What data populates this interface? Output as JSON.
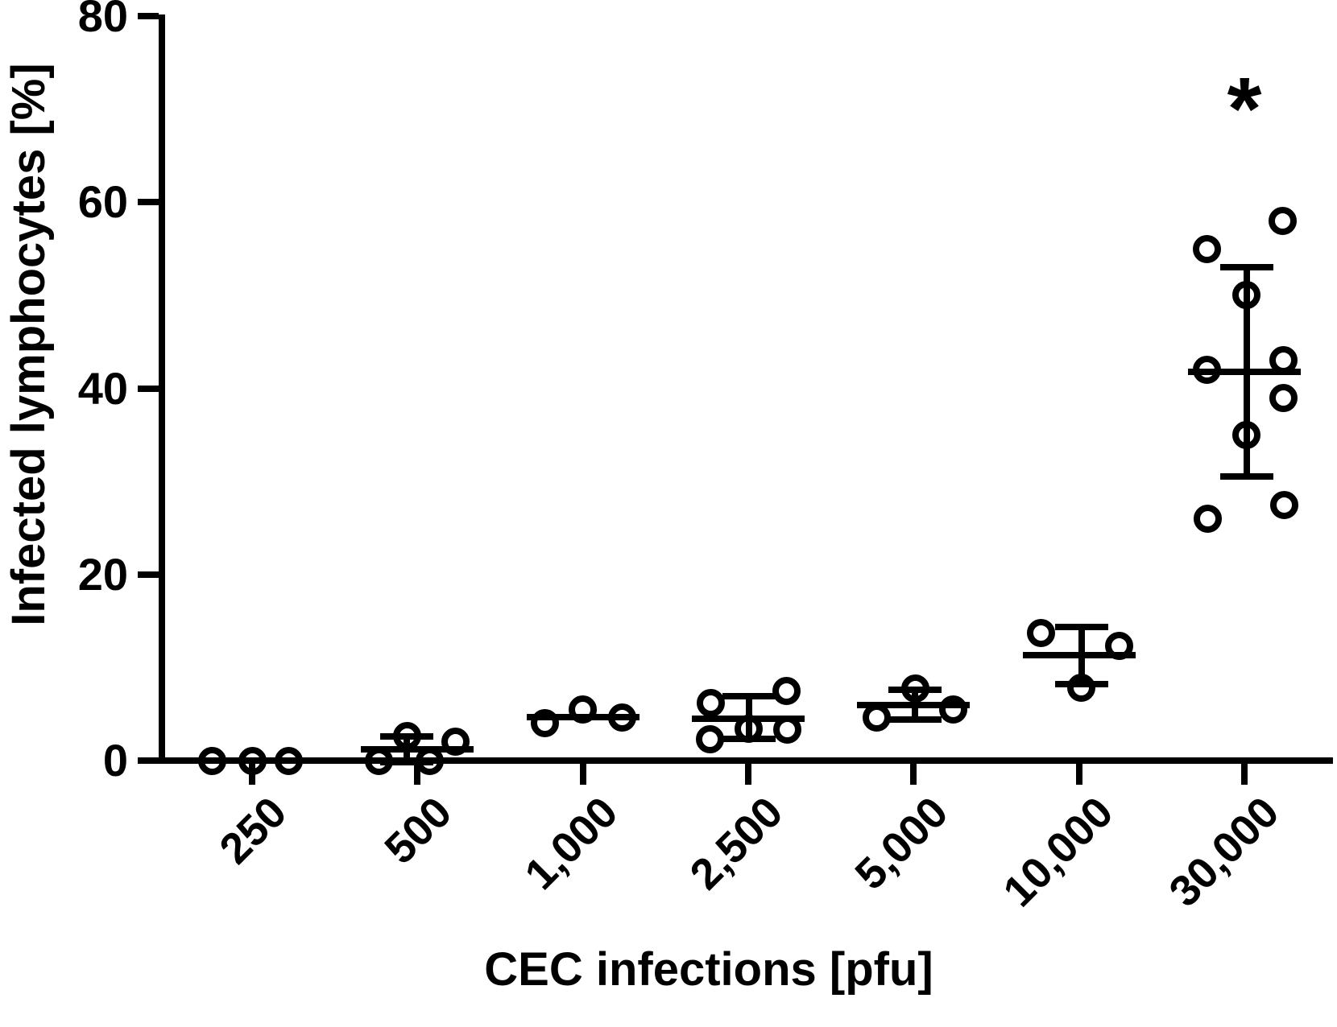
{
  "figure": {
    "background": "#ffffff",
    "ink": "#000000"
  },
  "chart_data": {
    "type": "scatter",
    "title": "",
    "xlabel": "CEC infections [pfu]",
    "ylabel": "Infected lymphocytes [%]",
    "ylim": [
      0,
      80
    ],
    "yticks": [
      0,
      20,
      40,
      60,
      80
    ],
    "categories": [
      "250",
      "500",
      "1,000",
      "2,500",
      "5,000",
      "10,000",
      "30,000"
    ],
    "grid": false,
    "legend": "none",
    "marker": "open-circle",
    "error_style": "mean-plus-minus-sd",
    "groups": [
      {
        "category": "250",
        "values": [
          0,
          0,
          0
        ],
        "mean": 0,
        "whisker_low": null,
        "whisker_high": null,
        "err_dx": 0,
        "points": [
          {
            "dx": -50,
            "v": 0
          },
          {
            "dx": 0,
            "v": 0
          },
          {
            "dx": 45,
            "v": 0
          }
        ]
      },
      {
        "category": "500",
        "values": [
          0,
          2.6,
          0,
          2
        ],
        "mean": 1.2,
        "whisker_low": -0.2,
        "whisker_high": 2.6,
        "err_dx": -13,
        "points": [
          {
            "dx": -48,
            "v": 0
          },
          {
            "dx": -13,
            "v": 2.6
          },
          {
            "dx": 15,
            "v": 0
          },
          {
            "dx": 47,
            "v": 2
          }
        ]
      },
      {
        "category": "1,000",
        "values": [
          4,
          5.5,
          4.6
        ],
        "mean": 4.7,
        "whisker_low": null,
        "whisker_high": null,
        "err_dx": 0,
        "points": [
          {
            "dx": -47,
            "v": 4
          },
          {
            "dx": 0,
            "v": 5.5
          },
          {
            "dx": 49,
            "v": 4.6
          }
        ]
      },
      {
        "category": "2,500",
        "values": [
          6.2,
          2.3,
          3.4,
          7.5,
          3.3
        ],
        "mean": 4.5,
        "whisker_low": 2.3,
        "whisker_high": 6.9,
        "err_dx": 1,
        "points": [
          {
            "dx": -46,
            "v": 6.2
          },
          {
            "dx": -47,
            "v": 2.3
          },
          {
            "dx": 1,
            "v": 3.4
          },
          {
            "dx": 48,
            "v": 7.5
          },
          {
            "dx": 49,
            "v": 3.3
          }
        ]
      },
      {
        "category": "5,000",
        "values": [
          4.6,
          7.7,
          5.5
        ],
        "mean": 6,
        "whisker_low": 4.4,
        "whisker_high": 7.6,
        "err_dx": 2,
        "points": [
          {
            "dx": -46,
            "v": 4.6
          },
          {
            "dx": 2,
            "v": 7.7
          },
          {
            "dx": 49,
            "v": 5.5
          }
        ]
      },
      {
        "category": "10,000",
        "values": [
          13.7,
          7.8,
          12.3
        ],
        "mean": 11.3,
        "whisker_low": 8.2,
        "whisker_high": 14.4,
        "err_dx": 3,
        "points": [
          {
            "dx": -47,
            "v": 13.7
          },
          {
            "dx": 3,
            "v": 7.8
          },
          {
            "dx": 50,
            "v": 12.3
          }
        ]
      },
      {
        "category": "30,000",
        "values": [
          55,
          58,
          50,
          42,
          43,
          39,
          35,
          26,
          27.5
        ],
        "mean": 41.8,
        "whisker_low": 30.5,
        "whisker_high": 53,
        "err_dx": 3,
        "points": [
          {
            "dx": -46,
            "v": 55
          },
          {
            "dx": 48,
            "v": 58
          },
          {
            "dx": 3,
            "v": 50
          },
          {
            "dx": -46,
            "v": 42
          },
          {
            "dx": 49,
            "v": 43
          },
          {
            "dx": 49,
            "v": 39
          },
          {
            "dx": 3,
            "v": 35
          },
          {
            "dx": -45,
            "v": 26
          },
          {
            "dx": 50,
            "v": 27.5
          }
        ]
      }
    ],
    "annotations": [
      {
        "text": "*",
        "category": "30,000",
        "v": 70,
        "meaning": "significance-marker"
      }
    ]
  }
}
